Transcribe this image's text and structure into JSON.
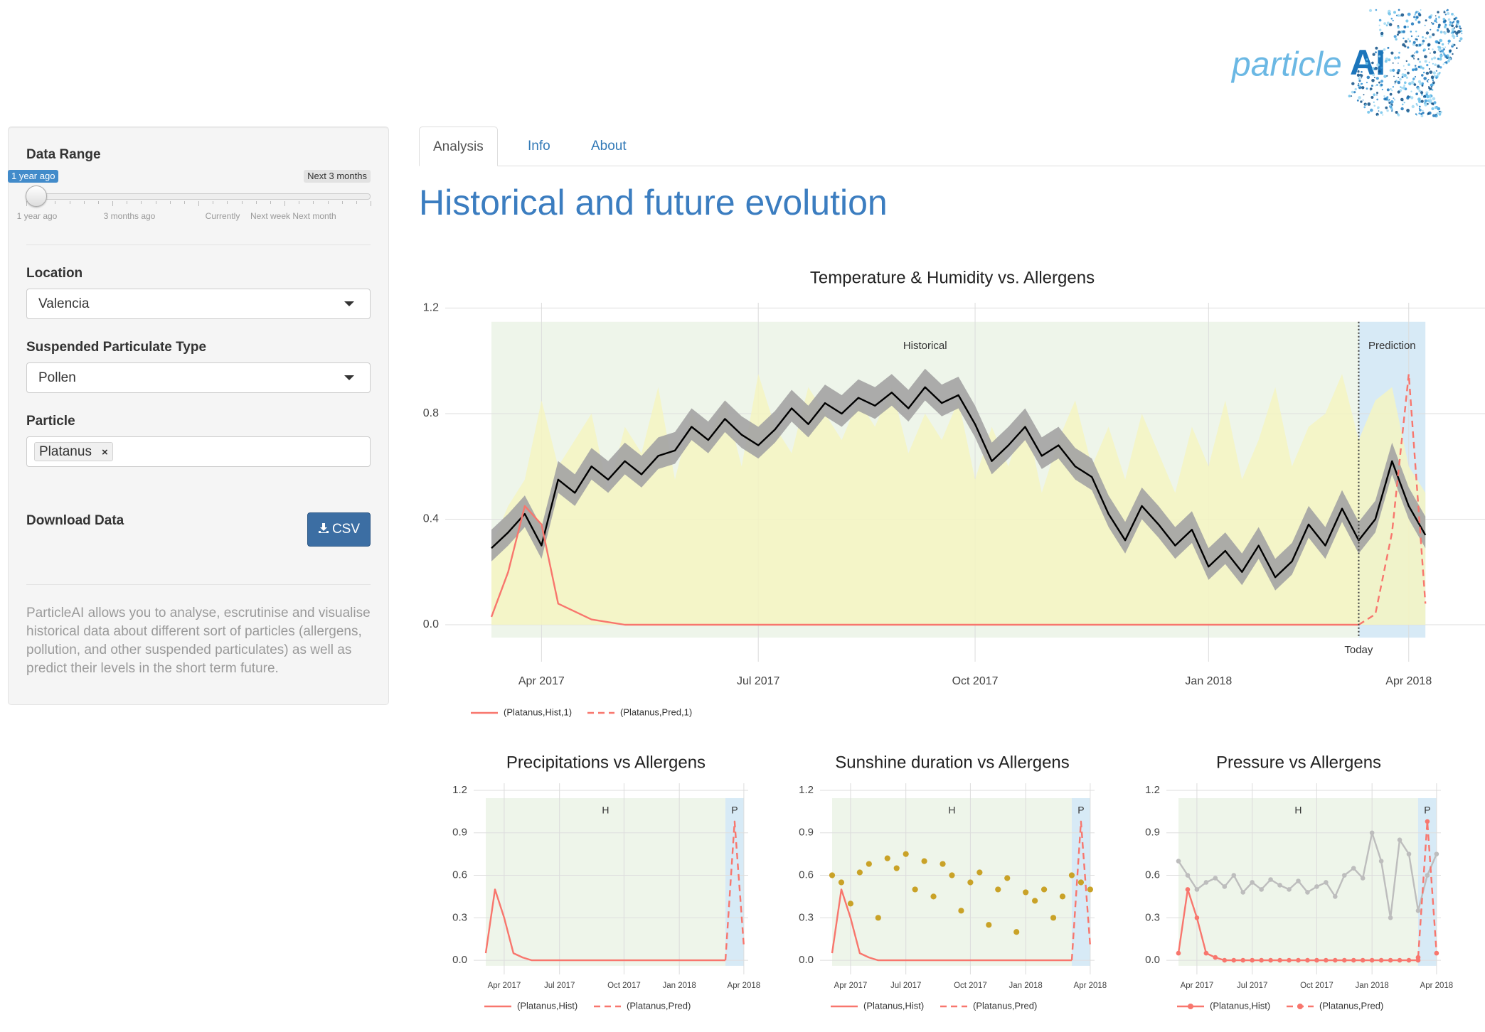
{
  "header": {
    "logo_light": "particle",
    "logo_bold": "AI"
  },
  "sidebar": {
    "data_range": {
      "label": "Data Range",
      "from": "1 year ago",
      "to": "Next 3 months",
      "scale": [
        "1 year ago",
        "3 months ago",
        "Currently",
        "Next week",
        "Next month"
      ]
    },
    "location": {
      "label": "Location",
      "value": "Valencia"
    },
    "particulate_type": {
      "label": "Suspended Particulate Type",
      "value": "Pollen"
    },
    "particle": {
      "label": "Particle",
      "value": "Platanus",
      "remove": "×"
    },
    "download": {
      "label": "Download Data",
      "button": "CSV"
    },
    "description": "ParticleAI allows you to analyse, escrutinise and visualise historical data about different sort of particles (allergens, pollution, and other suspended particulates) as well as predict their levels in the short term future."
  },
  "tabs": [
    "Analysis",
    "Info",
    "About"
  ],
  "active_tab": 0,
  "heading": "Historical and future evolution",
  "chart_data": [
    {
      "type": "line",
      "title": "Temperature & Humidity vs. Allergens",
      "categories": [
        null,
        null,
        null,
        "Apr 2017",
        null,
        null,
        null,
        null,
        null,
        null,
        null,
        null,
        null,
        null,
        null,
        null,
        "Jul 2017",
        null,
        null,
        null,
        null,
        null,
        null,
        null,
        null,
        null,
        null,
        null,
        null,
        "Oct 2017",
        null,
        null,
        null,
        null,
        null,
        null,
        null,
        null,
        null,
        null,
        null,
        null,
        null,
        "Jan 2018",
        null,
        null,
        null,
        null,
        null,
        null,
        null,
        null,
        null,
        null,
        null,
        "Apr 2018",
        null
      ],
      "ylim": [
        -0.14,
        1.22
      ],
      "yticks": [
        {
          "value": 0,
          "label": "0.0"
        },
        0.4,
        0.8,
        1.2
      ],
      "regions": [
        {
          "label": "Historical",
          "from": 0,
          "to": 52,
          "color": "#eef5ea"
        },
        {
          "label": "Prediction",
          "from": 52,
          "to": 56,
          "color": "#d7eaf6"
        }
      ],
      "today": {
        "label": "Today",
        "at": 52
      },
      "series": [
        {
          "kind": "area",
          "color": "#f4f4c2",
          "values": [
            0.3,
            0.45,
            0.55,
            0.85,
            0.6,
            0.7,
            0.8,
            0.5,
            0.75,
            0.65,
            0.9,
            0.55,
            0.8,
            0.7,
            0.85,
            0.6,
            0.95,
            0.75,
            0.65,
            0.9,
            0.8,
            0.7,
            0.85,
            0.75,
            0.9,
            0.65,
            0.8,
            0.7,
            0.85,
            0.55,
            0.75,
            0.6,
            0.8,
            0.5,
            0.7,
            0.85,
            0.6,
            0.75,
            0.55,
            0.8,
            0.65,
            0.5,
            0.75,
            0.6,
            0.85,
            0.55,
            0.7,
            0.9,
            0.6,
            0.75,
            0.8,
            0.95,
            0.7,
            0.85,
            0.9,
            0.6,
            0.5
          ]
        },
        {
          "kind": "band",
          "color": "#a3a3a3",
          "upper": [
            0.36,
            0.42,
            0.49,
            0.37,
            0.62,
            0.57,
            0.67,
            0.62,
            0.69,
            0.64,
            0.71,
            0.73,
            0.82,
            0.77,
            0.85,
            0.79,
            0.75,
            0.81,
            0.89,
            0.83,
            0.91,
            0.87,
            0.93,
            0.9,
            0.95,
            0.89,
            0.97,
            0.91,
            0.94,
            0.83,
            0.69,
            0.75,
            0.82,
            0.71,
            0.75,
            0.67,
            0.63,
            0.49,
            0.39,
            0.52,
            0.45,
            0.37,
            0.43,
            0.29,
            0.35,
            0.27,
            0.37,
            0.25,
            0.31,
            0.45,
            0.37,
            0.51,
            0.39,
            0.47,
            0.69,
            0.52,
            0.41
          ],
          "lower": [
            0.24,
            0.3,
            0.37,
            0.25,
            0.5,
            0.45,
            0.55,
            0.5,
            0.57,
            0.52,
            0.59,
            0.61,
            0.7,
            0.65,
            0.73,
            0.67,
            0.63,
            0.69,
            0.77,
            0.71,
            0.79,
            0.75,
            0.81,
            0.78,
            0.83,
            0.77,
            0.85,
            0.79,
            0.82,
            0.71,
            0.57,
            0.63,
            0.7,
            0.59,
            0.63,
            0.55,
            0.51,
            0.37,
            0.27,
            0.4,
            0.33,
            0.25,
            0.31,
            0.17,
            0.23,
            0.15,
            0.25,
            0.13,
            0.19,
            0.33,
            0.25,
            0.39,
            0.27,
            0.35,
            0.57,
            0.4,
            0.29
          ]
        },
        {
          "kind": "line",
          "color": "#000000",
          "values": [
            0.29,
            0.35,
            0.42,
            0.3,
            0.55,
            0.5,
            0.6,
            0.55,
            0.62,
            0.57,
            0.64,
            0.66,
            0.75,
            0.7,
            0.78,
            0.72,
            0.68,
            0.74,
            0.82,
            0.76,
            0.84,
            0.8,
            0.86,
            0.83,
            0.88,
            0.82,
            0.9,
            0.84,
            0.87,
            0.76,
            0.62,
            0.68,
            0.75,
            0.64,
            0.68,
            0.6,
            0.56,
            0.42,
            0.32,
            0.45,
            0.38,
            0.3,
            0.36,
            0.22,
            0.28,
            0.2,
            0.3,
            0.18,
            0.24,
            0.38,
            0.3,
            0.44,
            0.32,
            0.4,
            0.62,
            0.45,
            0.34
          ]
        },
        {
          "name": "(Platanus,Hist,1)",
          "kind": "line",
          "color": "#f8766d",
          "values": [
            0.03,
            0.2,
            0.45,
            0.38,
            0.08,
            0.05,
            0.02,
            0.01,
            0,
            0,
            0,
            0,
            0,
            0,
            0,
            0,
            0,
            0,
            0,
            0,
            0,
            0,
            0,
            0,
            0,
            0,
            0,
            0,
            0,
            0,
            0,
            0,
            0,
            0,
            0,
            0,
            0,
            0,
            0,
            0,
            0,
            0,
            0,
            0,
            0,
            0,
            0,
            0,
            0,
            0,
            0,
            0,
            0,
            null,
            null,
            null,
            null
          ]
        },
        {
          "name": "(Platanus,Pred,1)",
          "kind": "line",
          "dash": true,
          "color": "#f8766d",
          "values": [
            null,
            null,
            null,
            null,
            null,
            null,
            null,
            null,
            null,
            null,
            null,
            null,
            null,
            null,
            null,
            null,
            null,
            null,
            null,
            null,
            null,
            null,
            null,
            null,
            null,
            null,
            null,
            null,
            null,
            null,
            null,
            null,
            null,
            null,
            null,
            null,
            null,
            null,
            null,
            null,
            null,
            null,
            null,
            null,
            null,
            null,
            null,
            null,
            null,
            null,
            null,
            null,
            0,
            0.04,
            0.35,
            0.95,
            0.08
          ]
        }
      ]
    },
    {
      "type": "line",
      "title": "Precipitations vs Allergens",
      "categories": [
        null,
        null,
        "Apr 2017",
        null,
        null,
        null,
        null,
        null,
        "Jul 2017",
        null,
        null,
        null,
        null,
        null,
        null,
        "Oct 2017",
        null,
        null,
        null,
        null,
        null,
        "Jan 2018",
        null,
        null,
        null,
        null,
        null,
        null,
        "Apr 2018"
      ],
      "ylim": [
        -0.1,
        1.25
      ],
      "yticks": [
        {
          "value": 0,
          "label": "0.0"
        },
        0.3,
        0.6,
        0.9,
        1.2
      ],
      "regions": [
        {
          "label": "H",
          "from": 0,
          "to": 26,
          "color": "#eef5ea"
        },
        {
          "label": "P",
          "from": 26,
          "to": 28,
          "color": "#d7eaf6"
        }
      ],
      "series": [
        {
          "name": "(Platanus,Hist)",
          "kind": "line",
          "color": "#f8766d",
          "values": [
            0.05,
            0.5,
            0.3,
            0.05,
            0.02,
            0,
            0,
            0,
            0,
            0,
            0,
            0,
            0,
            0,
            0,
            0,
            0,
            0,
            0,
            0,
            0,
            0,
            0,
            0,
            0,
            0,
            0,
            null,
            null
          ]
        },
        {
          "name": "(Platanus,Pred)",
          "kind": "line",
          "dash": true,
          "color": "#f8766d",
          "values": [
            null,
            null,
            null,
            null,
            null,
            null,
            null,
            null,
            null,
            null,
            null,
            null,
            null,
            null,
            null,
            null,
            null,
            null,
            null,
            null,
            null,
            null,
            null,
            null,
            null,
            null,
            0,
            0.98,
            0.1
          ]
        }
      ]
    },
    {
      "type": "line",
      "title": "Sunshine duration vs Allergens",
      "categories": [
        null,
        null,
        "Apr 2017",
        null,
        null,
        null,
        null,
        null,
        "Jul 2017",
        null,
        null,
        null,
        null,
        null,
        null,
        "Oct 2017",
        null,
        null,
        null,
        null,
        null,
        "Jan 2018",
        null,
        null,
        null,
        null,
        null,
        null,
        "Apr 2018"
      ],
      "ylim": [
        -0.1,
        1.25
      ],
      "yticks": [
        {
          "value": 0,
          "label": "0.0"
        },
        0.3,
        0.6,
        0.9,
        1.2
      ],
      "regions": [
        {
          "label": "H",
          "from": 0,
          "to": 26,
          "color": "#eef5ea"
        },
        {
          "label": "P",
          "from": 26,
          "to": 28,
          "color": "#d7eaf6"
        }
      ],
      "series": [
        {
          "kind": "scatter",
          "color": "#c9a227",
          "values": [
            0.6,
            0.55,
            0.4,
            0.62,
            0.68,
            0.3,
            0.72,
            0.65,
            0.75,
            0.5,
            0.7,
            0.45,
            0.68,
            0.6,
            0.35,
            0.55,
            0.62,
            0.25,
            0.5,
            0.58,
            0.2,
            0.48,
            0.42,
            0.5,
            0.3,
            0.45,
            0.6,
            0.55,
            0.5
          ]
        },
        {
          "name": "(Platanus,Hist)",
          "kind": "line",
          "color": "#f8766d",
          "values": [
            0.05,
            0.5,
            0.3,
            0.05,
            0.02,
            0,
            0,
            0,
            0,
            0,
            0,
            0,
            0,
            0,
            0,
            0,
            0,
            0,
            0,
            0,
            0,
            0,
            0,
            0,
            0,
            0,
            0,
            null,
            null
          ]
        },
        {
          "name": "(Platanus,Pred)",
          "kind": "line",
          "dash": true,
          "color": "#f8766d",
          "values": [
            null,
            null,
            null,
            null,
            null,
            null,
            null,
            null,
            null,
            null,
            null,
            null,
            null,
            null,
            null,
            null,
            null,
            null,
            null,
            null,
            null,
            null,
            null,
            null,
            null,
            null,
            0,
            0.98,
            0.1
          ]
        }
      ]
    },
    {
      "type": "line",
      "title": "Pressure vs Allergens",
      "categories": [
        null,
        null,
        "Apr 2017",
        null,
        null,
        null,
        null,
        null,
        "Jul 2017",
        null,
        null,
        null,
        null,
        null,
        null,
        "Oct 2017",
        null,
        null,
        null,
        null,
        null,
        "Jan 2018",
        null,
        null,
        null,
        null,
        null,
        null,
        "Apr 2018"
      ],
      "ylim": [
        -0.1,
        1.25
      ],
      "yticks": [
        {
          "value": 0,
          "label": "0.0"
        },
        0.3,
        0.6,
        0.9,
        1.2
      ],
      "regions": [
        {
          "label": "H",
          "from": 0,
          "to": 26,
          "color": "#eef5ea"
        },
        {
          "label": "P",
          "from": 26,
          "to": 28,
          "color": "#d7eaf6"
        }
      ],
      "series": [
        {
          "kind": "line",
          "markers": true,
          "color": "#bdbdbd",
          "values": [
            0.7,
            0.6,
            0.5,
            0.55,
            0.58,
            0.52,
            0.6,
            0.48,
            0.55,
            0.5,
            0.57,
            0.53,
            0.5,
            0.56,
            0.48,
            0.52,
            0.55,
            0.45,
            0.6,
            0.65,
            0.58,
            0.9,
            0.7,
            0.3,
            0.85,
            0.75,
            0.35,
            0.6,
            0.75
          ]
        },
        {
          "name": "(Platanus,Hist)",
          "kind": "line",
          "markers": true,
          "color": "#f8766d",
          "values": [
            0.05,
            0.5,
            0.3,
            0.05,
            0.02,
            0,
            0,
            0,
            0,
            0,
            0,
            0,
            0,
            0,
            0,
            0,
            0,
            0,
            0,
            0,
            0,
            0,
            0,
            0,
            0,
            0,
            0,
            null,
            null
          ]
        },
        {
          "name": "(Platanus,Pred)",
          "kind": "line",
          "markers": true,
          "dash": true,
          "color": "#f8766d",
          "values": [
            null,
            null,
            null,
            null,
            null,
            null,
            null,
            null,
            null,
            null,
            null,
            null,
            null,
            null,
            null,
            null,
            null,
            null,
            null,
            null,
            null,
            null,
            null,
            null,
            null,
            null,
            0.02,
            0.98,
            0.05
          ]
        }
      ]
    }
  ]
}
